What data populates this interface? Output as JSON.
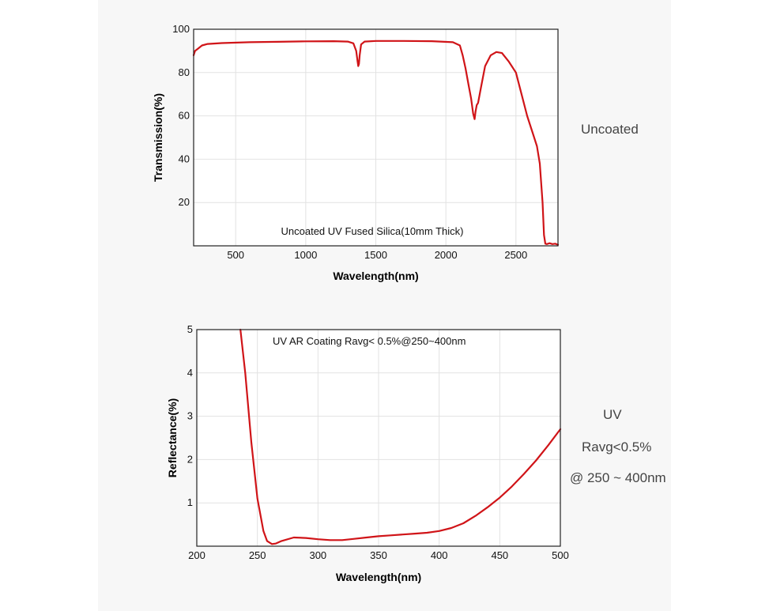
{
  "colors": {
    "curve": "#d01418",
    "grid": "#e2e2e2",
    "frame": "#222222",
    "panel": "#f7f7f7"
  },
  "side_labels": {
    "top": "Uncoated",
    "bottom": [
      "UV",
      "Ravg<0.5%",
      "@ 250 ~ 400nm"
    ]
  },
  "chart_data": [
    {
      "type": "line",
      "annotation": "Uncoated UV Fused Silica(10mm Thick)",
      "xlabel": "Wavelength(nm)",
      "ylabel": "Transmission(%)",
      "xlim": [
        200,
        2800
      ],
      "ylim": [
        0,
        100
      ],
      "xticks": [
        500,
        1000,
        1500,
        2000,
        2500
      ],
      "yticks": [
        20,
        40,
        60,
        80,
        100
      ],
      "grid": true,
      "series": [
        {
          "x": [
            200,
            210,
            230,
            260,
            300,
            400,
            600,
            800,
            1000,
            1200,
            1300,
            1340,
            1360,
            1370,
            1375,
            1380,
            1385,
            1395,
            1420,
            1500,
            1700,
            1900,
            2050,
            2100,
            2120,
            2140,
            2160,
            2180,
            2195,
            2205,
            2212,
            2220,
            2230,
            2250,
            2280,
            2320,
            2360,
            2400,
            2450,
            2500,
            2540,
            2580,
            2620,
            2650,
            2670,
            2690,
            2700,
            2710,
            2720,
            2740,
            2760,
            2780,
            2800
          ],
          "y": [
            88,
            90,
            91,
            92.5,
            93.2,
            93.6,
            94,
            94.2,
            94.4,
            94.5,
            94.3,
            93.5,
            90,
            85,
            83,
            84,
            88,
            93,
            94.3,
            94.6,
            94.6,
            94.5,
            94,
            92.5,
            88,
            82,
            75,
            68,
            61,
            58.5,
            62,
            65,
            66,
            73,
            83,
            88,
            89.5,
            89,
            85,
            80,
            70,
            60,
            52,
            46,
            38,
            20,
            5,
            1,
            0.8,
            1.2,
            0.8,
            1,
            0.5
          ]
        }
      ]
    },
    {
      "type": "line",
      "annotation": "UV AR Coating Ravg< 0.5%@250~400nm",
      "xlabel": "Wavelength(nm)",
      "ylabel": "Reflectance(%)",
      "xlim": [
        200,
        500
      ],
      "ylim": [
        0,
        5
      ],
      "xticks": [
        200,
        250,
        300,
        350,
        400,
        450,
        500
      ],
      "yticks": [
        1,
        2,
        3,
        4,
        5
      ],
      "grid": true,
      "series": [
        {
          "x": [
            236,
            240,
            245,
            250,
            255,
            258,
            262,
            265,
            270,
            280,
            290,
            300,
            310,
            320,
            330,
            340,
            350,
            360,
            370,
            380,
            390,
            400,
            410,
            420,
            430,
            440,
            450,
            460,
            470,
            480,
            490,
            500
          ],
          "y": [
            5.0,
            4.0,
            2.4,
            1.1,
            0.35,
            0.12,
            0.05,
            0.06,
            0.12,
            0.2,
            0.19,
            0.16,
            0.14,
            0.14,
            0.17,
            0.2,
            0.23,
            0.25,
            0.27,
            0.29,
            0.31,
            0.35,
            0.42,
            0.53,
            0.7,
            0.9,
            1.12,
            1.38,
            1.67,
            1.98,
            2.33,
            2.7
          ]
        }
      ]
    }
  ]
}
